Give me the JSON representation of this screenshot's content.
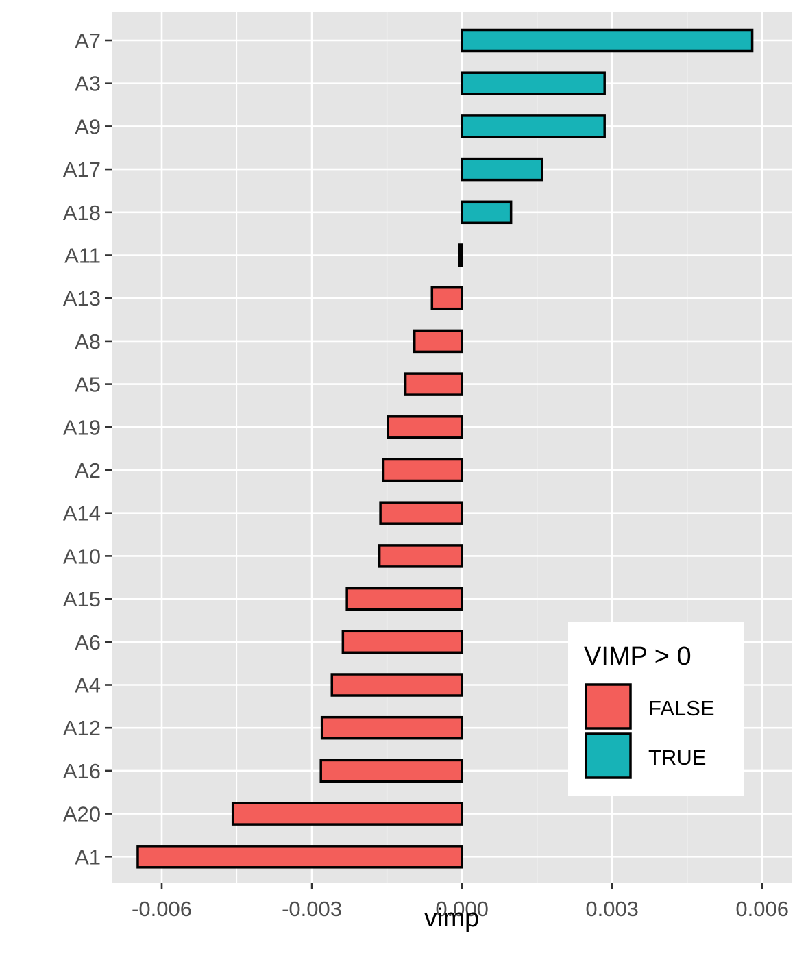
{
  "colors": {
    "panel_background": "#e5e5e5",
    "grid_line": "#ffffff",
    "bar_outline": "#000000",
    "false_fill": "#f35e5a",
    "true_fill": "#17b3b7",
    "tick": "#333333"
  },
  "chart_data": {
    "type": "bar",
    "orientation": "horizontal",
    "xlabel": "vimp",
    "ylabel": "",
    "xlim": [
      -0.007,
      0.0066
    ],
    "x_ticks": [
      -0.006,
      -0.003,
      0.0,
      0.003,
      0.006
    ],
    "x_tick_labels": [
      "-0.006",
      "-0.003",
      "0.000",
      "0.003",
      "0.006"
    ],
    "grid": true,
    "categories": [
      "A7",
      "A3",
      "A9",
      "A17",
      "A18",
      "A11",
      "A13",
      "A8",
      "A5",
      "A19",
      "A2",
      "A14",
      "A10",
      "A15",
      "A6",
      "A4",
      "A12",
      "A16",
      "A20",
      "A1"
    ],
    "values": [
      0.0058,
      0.00285,
      0.00285,
      0.0016,
      0.00098,
      -5e-05,
      -0.0006,
      -0.00095,
      -0.00113,
      -0.00148,
      -0.00157,
      -0.00163,
      -0.00165,
      -0.0023,
      -0.00238,
      -0.0026,
      -0.0028,
      -0.00282,
      -0.00458,
      -0.00648
    ],
    "legend": {
      "title": "VIMP > 0",
      "position": "bottom-right",
      "entries": [
        {
          "label": "FALSE",
          "color": "#f35e5a"
        },
        {
          "label": "TRUE",
          "color": "#17b3b7"
        }
      ]
    }
  }
}
